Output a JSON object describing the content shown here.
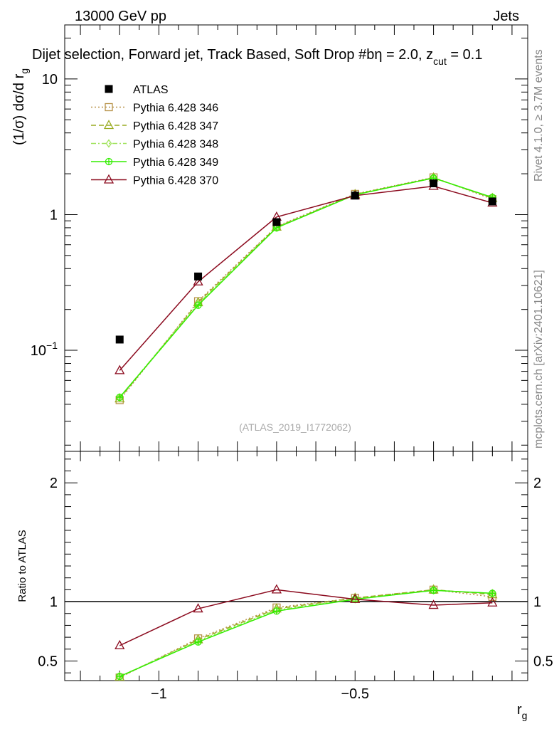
{
  "header": {
    "left": "13000 GeV pp",
    "right": "Jets",
    "title": "Dijet selection, Forward jet, Track Based, Soft Drop #b",
    "title_cut": "η = 2.0, z",
    "title_cut_sub": "cut",
    "title_cut_tail": " = 0.1"
  },
  "side_labels": {
    "rivet": "Rivet 4.1.0, ≥ 3.7M events",
    "mcplots": "mcplots.cern.ch [arXiv:2401.10621]"
  },
  "watermark": "(ATLAS_2019_I1772062)",
  "chart_data": [
    {
      "type": "line",
      "panel": "main",
      "ylabel": "(1/σ) dσ/d r",
      "ylabel_sub": "g",
      "yscale": "log",
      "ylim": [
        0.018,
        25
      ],
      "xlim": [
        -1.24,
        -0.06
      ],
      "yticks": [
        {
          "v": 0.1,
          "label": "10",
          "sup": "−1"
        },
        {
          "v": 1,
          "label": "1",
          "sup": ""
        },
        {
          "v": 10,
          "label": "10",
          "sup": ""
        }
      ],
      "x": [
        -1.1,
        -0.9,
        -0.7,
        -0.5,
        -0.3,
        -0.15
      ],
      "series": [
        {
          "name": "ATLAS",
          "color": "#000000",
          "dash": "",
          "marker": "filled-square",
          "values": [
            0.12,
            0.35,
            0.88,
            1.38,
            1.7,
            1.25
          ]
        },
        {
          "name": "Pythia 6.428 346",
          "color": "#b8934a",
          "dash": "2,3",
          "marker": "open-square",
          "values": [
            0.043,
            0.23,
            0.82,
            1.42,
            1.88,
            1.3
          ]
        },
        {
          "name": "Pythia 6.428 347",
          "color": "#9aac22",
          "dash": "7,4",
          "marker": "open-triangle",
          "values": [
            0.044,
            0.225,
            0.81,
            1.41,
            1.87,
            1.32
          ]
        },
        {
          "name": "Pythia 6.428 348",
          "color": "#9fe35a",
          "dash": "7,3,2,3",
          "marker": "open-diamond",
          "values": [
            0.045,
            0.22,
            0.8,
            1.4,
            1.86,
            1.33
          ]
        },
        {
          "name": "Pythia 6.428 349",
          "color": "#33ee00",
          "dash": "",
          "marker": "open-circle-cross",
          "values": [
            0.045,
            0.215,
            0.8,
            1.4,
            1.86,
            1.34
          ]
        },
        {
          "name": "Pythia 6.428 370",
          "color": "#8b0a1e",
          "dash": "",
          "marker": "open-triangle",
          "values": [
            0.071,
            0.32,
            0.96,
            1.38,
            1.62,
            1.22
          ]
        }
      ]
    },
    {
      "type": "line",
      "panel": "ratio",
      "ylabel": "Ratio to ATLAS",
      "xlabel": "r",
      "xlabel_sub": "g",
      "ylim": [
        0.335,
        2.265
      ],
      "xlim": [
        -1.24,
        -0.06
      ],
      "reference_line": 1,
      "yticks": [
        {
          "v": 0.5,
          "label": "0.5"
        },
        {
          "v": 1,
          "label": "1"
        },
        {
          "v": 2,
          "label": "2"
        }
      ],
      "xticks": [
        {
          "v": -1,
          "label": "−1"
        },
        {
          "v": -0.5,
          "label": "−0.5"
        }
      ],
      "x": [
        -1.1,
        -0.9,
        -0.7,
        -0.5,
        -0.3,
        -0.15
      ],
      "series": [
        {
          "name": "Pythia 6.428 346",
          "values": [
            0.36,
            0.69,
            0.95,
            1.03,
            1.1,
            1.04
          ]
        },
        {
          "name": "Pythia 6.428 347",
          "values": [
            0.365,
            0.68,
            0.94,
            1.03,
            1.1,
            1.06
          ]
        },
        {
          "name": "Pythia 6.428 348",
          "values": [
            0.37,
            0.67,
            0.93,
            1.02,
            1.095,
            1.07
          ]
        },
        {
          "name": "Pythia 6.428 349",
          "values": [
            0.37,
            0.66,
            0.92,
            1.02,
            1.095,
            1.07
          ]
        },
        {
          "name": "Pythia 6.428 370",
          "values": [
            0.63,
            0.94,
            1.1,
            1.02,
            0.97,
            0.99
          ]
        }
      ]
    }
  ]
}
